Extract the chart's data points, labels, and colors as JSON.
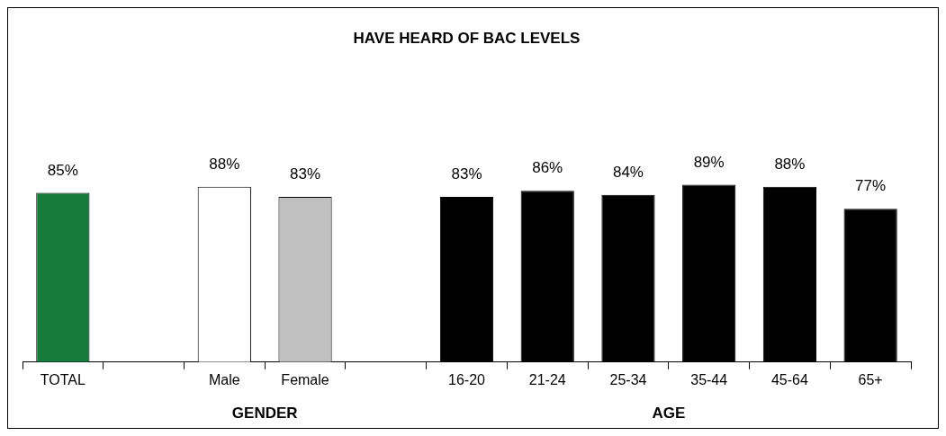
{
  "chart_data": {
    "type": "bar",
    "title": "HAVE HEARD OF BAC LEVELS",
    "categories": [
      "TOTAL",
      null,
      "Male",
      "Female",
      null,
      "16-20",
      "21-24",
      "25-34",
      "35-44",
      "45-64",
      "65+"
    ],
    "values": [
      85,
      null,
      88,
      83,
      null,
      83,
      86,
      84,
      89,
      88,
      77
    ],
    "colors": [
      "#177b3d",
      null,
      "#ffffff",
      "#c0c0c0",
      null,
      "#000000",
      "#000000",
      "#000000",
      "#000000",
      "#000000",
      "#000000"
    ],
    "value_labels": [
      "85%",
      null,
      "88%",
      "83%",
      null,
      "83%",
      "86%",
      "84%",
      "89%",
      "88%",
      "77%"
    ],
    "annotations": [
      "GENDER",
      "AGE"
    ],
    "legend": false
  }
}
